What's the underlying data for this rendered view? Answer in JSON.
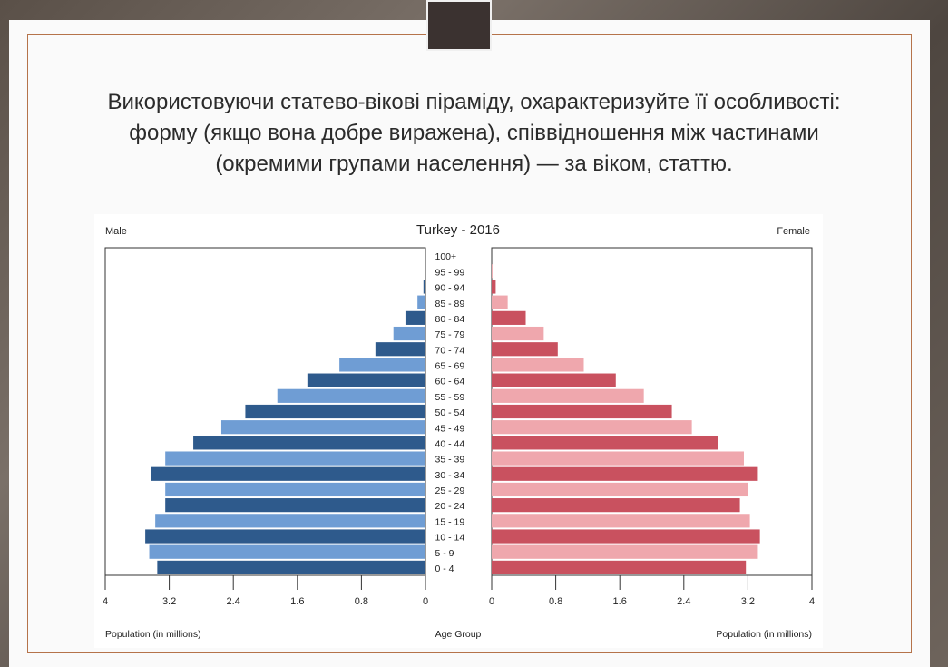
{
  "slide": {
    "title": "Використовуючи статево-вікові піраміду, охарактеризуйте її особливості: форму (якщо вона добре виражена), співвідношення між частинами (окремими групами населення) — за віком, статтю."
  },
  "chart_data": {
    "type": "population-pyramid",
    "title": "Turkey - 2016",
    "left_label": "Male",
    "right_label": "Female",
    "xlabel_left": "Population (in millions)",
    "xlabel_center": "Age Group",
    "xlabel_right": "Population (in millions)",
    "xlim": [
      0,
      4
    ],
    "ticks_left": [
      "4",
      "3.2",
      "2.4",
      "1.6",
      "0.8",
      "0"
    ],
    "ticks_right": [
      "0",
      "0.8",
      "1.6",
      "2.4",
      "3.2",
      "4"
    ],
    "categories": [
      "100+",
      "95 - 99",
      "90 - 94",
      "85 - 89",
      "80 - 84",
      "75 - 79",
      "70 - 74",
      "65 - 69",
      "60 - 64",
      "55 - 59",
      "50 - 54",
      "45 - 49",
      "40 - 44",
      "35 - 39",
      "30 - 34",
      "25 - 29",
      "20 - 24",
      "15 - 19",
      "10 - 14",
      "5 - 9",
      "0 - 4"
    ],
    "series": [
      {
        "name": "Male",
        "values": [
          0.0,
          0.02,
          0.05,
          0.2,
          0.5,
          0.8,
          1.25,
          2.15,
          2.95,
          3.7,
          4.5,
          5.1,
          5.8,
          6.5,
          6.85,
          6.5,
          6.5,
          6.75,
          7.0,
          6.9,
          6.7
        ],
        "colors": [
          "#2e5a8c",
          "#6f9dd4"
        ]
      },
      {
        "name": "Female",
        "values": [
          0.0,
          0.02,
          0.1,
          0.4,
          0.85,
          1.3,
          1.65,
          2.3,
          3.1,
          3.8,
          4.5,
          5.0,
          5.65,
          6.3,
          6.65,
          6.4,
          6.2,
          6.45,
          6.7,
          6.65,
          6.35
        ],
        "colors": [
          "#c9515f",
          "#efa7ad"
        ]
      }
    ],
    "value_scale_note": "values in data units where 8 units = 4 million (half-units of 0.5M)"
  }
}
